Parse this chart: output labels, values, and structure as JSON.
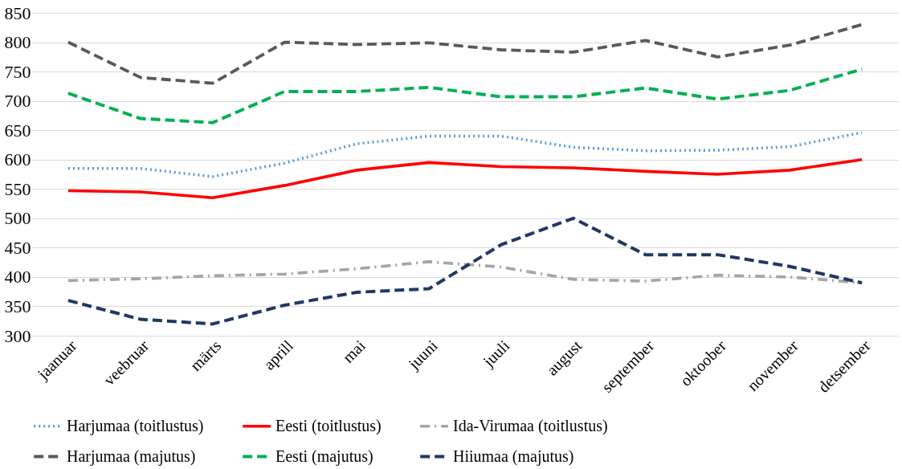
{
  "chart_data": {
    "type": "line",
    "categories": [
      "jaanuar",
      "veebruar",
      "märts",
      "aprill",
      "mai",
      "juuni",
      "juuli",
      "august",
      "september",
      "oktoober",
      "november",
      "detsember"
    ],
    "series": [
      {
        "name": "Harjumaa (toitlustus)",
        "color": "#5b9bd5",
        "line_style": "dotted",
        "values": [
          585,
          585,
          571,
          594,
          627,
          640,
          640,
          621,
          615,
          616,
          622,
          646
        ]
      },
      {
        "name": "Eesti (toitlustus)",
        "color": "#ff0000",
        "line_style": "solid",
        "values": [
          547,
          545,
          535,
          556,
          582,
          595,
          588,
          586,
          580,
          575,
          582,
          600
        ]
      },
      {
        "name": "Ida-Virumaa (toitlustus)",
        "color": "#a5a5a5",
        "line_style": "dashdot",
        "values": [
          394,
          397,
          402,
          405,
          414,
          426,
          417,
          396,
          393,
          403,
          400,
          390
        ]
      },
      {
        "name": "Harjumaa (majutus)",
        "color": "#595959",
        "line_style": "dashed",
        "values": [
          800,
          740,
          730,
          800,
          796,
          799,
          787,
          783,
          803,
          775,
          795,
          830
        ]
      },
      {
        "name": "Eesti (majutus)",
        "color": "#00b050",
        "line_style": "dashed",
        "values": [
          713,
          670,
          663,
          716,
          716,
          723,
          707,
          707,
          722,
          703,
          718,
          754
        ]
      },
      {
        "name": "Hiiumaa (majutus)",
        "color": "#1f3864",
        "line_style": "dashed",
        "values": [
          360,
          328,
          320,
          352,
          374,
          380,
          455,
          500,
          438,
          438,
          418,
          390
        ]
      }
    ],
    "ylim": [
      300,
      850
    ],
    "yticks": [
      300,
      350,
      400,
      450,
      500,
      550,
      600,
      650,
      700,
      750,
      800,
      850
    ],
    "grid": "y",
    "legend": "bottom",
    "marker": "none"
  }
}
